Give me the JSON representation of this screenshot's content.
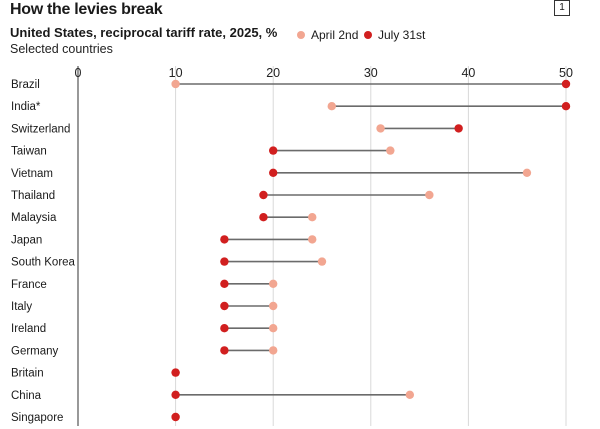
{
  "header": {
    "title": "How the levies break",
    "badge": "1"
  },
  "chart_data": {
    "type": "dumbbell",
    "title": "United States, reciprocal tariff rate, 2025, %",
    "subtitle": "Selected countries",
    "xlim": [
      0,
      50
    ],
    "xticks": [
      0,
      10,
      20,
      30,
      40,
      50
    ],
    "grid": true,
    "legend_position": "top",
    "series": [
      {
        "name": "April 2nd",
        "color": "#f2a691",
        "key": "april"
      },
      {
        "name": "July 31st",
        "color": "#d11f1f",
        "key": "july"
      }
    ],
    "categories": [
      "Brazil",
      "India*",
      "Switzerland",
      "Taiwan",
      "Vietnam",
      "Thailand",
      "Malaysia",
      "Japan",
      "South Korea",
      "France",
      "Italy",
      "Ireland",
      "Germany",
      "Britain",
      "China",
      "Singapore"
    ],
    "points": [
      {
        "country": "Brazil",
        "april": 10,
        "july": 50
      },
      {
        "country": "India*",
        "april": 26,
        "july": 50
      },
      {
        "country": "Switzerland",
        "april": 31,
        "july": 39
      },
      {
        "country": "Taiwan",
        "april": 32,
        "july": 20
      },
      {
        "country": "Vietnam",
        "april": 46,
        "july": 20
      },
      {
        "country": "Thailand",
        "april": 36,
        "july": 19
      },
      {
        "country": "Malaysia",
        "april": 24,
        "july": 19
      },
      {
        "country": "Japan",
        "april": 24,
        "july": 15
      },
      {
        "country": "South Korea",
        "april": 25,
        "july": 15
      },
      {
        "country": "France",
        "april": 20,
        "july": 15
      },
      {
        "country": "Italy",
        "april": 20,
        "july": 15
      },
      {
        "country": "Ireland",
        "april": 20,
        "july": 15
      },
      {
        "country": "Germany",
        "april": 20,
        "july": 15
      },
      {
        "country": "Britain",
        "april": 10,
        "july": 10
      },
      {
        "country": "China",
        "april": 34,
        "july": 10
      },
      {
        "country": "Singapore",
        "april": 10,
        "july": 10
      }
    ]
  }
}
